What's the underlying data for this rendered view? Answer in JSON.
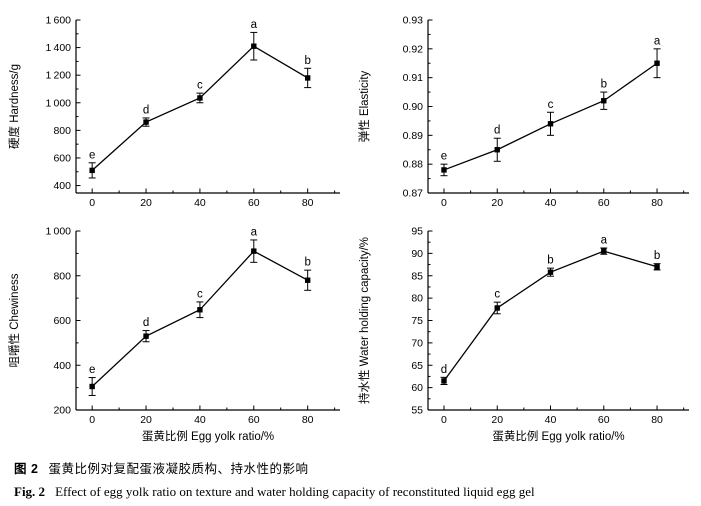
{
  "figure": {
    "caption_zh_label": "图 2",
    "caption_zh": "蛋黄比例对复配蛋液凝胶质构、持水性的影响",
    "caption_en_label": "Fig. 2",
    "caption_en": "Effect of egg yolk ratio on texture and water holding capacity of reconstituted liquid egg gel"
  },
  "style": {
    "line_color": "#000000",
    "marker_color": "#000000",
    "background": "#ffffff"
  },
  "chart_data": [
    {
      "id": "hardness",
      "type": "line",
      "x": [
        0,
        20,
        40,
        60,
        80
      ],
      "values": [
        510,
        860,
        1035,
        1410,
        1180
      ],
      "errors": [
        55,
        30,
        35,
        100,
        70
      ],
      "point_labels": [
        "e",
        "d",
        "c",
        "a",
        "b"
      ],
      "xlabel": "",
      "ylabel": "硬度 Hardness/g",
      "xlim": [
        -6,
        92
      ],
      "xticks": [
        0,
        20,
        40,
        60,
        80
      ],
      "ylim": [
        400,
        1600
      ],
      "ytick_step": 200,
      "y_decimals": 0,
      "ypad_bottom_frac": 0.045,
      "marker": "square",
      "grid": false,
      "legend": "none"
    },
    {
      "id": "elasticity",
      "type": "line",
      "x": [
        0,
        20,
        40,
        60,
        80
      ],
      "values": [
        0.878,
        0.885,
        0.894,
        0.902,
        0.915
      ],
      "errors": [
        0.002,
        0.004,
        0.004,
        0.003,
        0.005
      ],
      "point_labels": [
        "e",
        "d",
        "c",
        "b",
        "a"
      ],
      "xlabel": "",
      "ylabel": "弹性 Elasticity",
      "xlim": [
        -6,
        92
      ],
      "xticks": [
        0,
        20,
        40,
        60,
        80
      ],
      "ylim": [
        0.87,
        0.93
      ],
      "ytick_step": 0.01,
      "y_decimals": 2,
      "ypad_bottom_frac": 0,
      "marker": "square",
      "grid": false,
      "legend": "none"
    },
    {
      "id": "chewiness",
      "type": "line",
      "x": [
        0,
        20,
        40,
        60,
        80
      ],
      "values": [
        305,
        530,
        648,
        910,
        780
      ],
      "errors": [
        40,
        25,
        35,
        50,
        45
      ],
      "point_labels": [
        "e",
        "d",
        "c",
        "a",
        "b"
      ],
      "xlabel": "蛋黄比例 Egg yolk ratio/%",
      "ylabel": "咀嚼性 Chewiness",
      "xlim": [
        -6,
        92
      ],
      "xticks": [
        0,
        20,
        40,
        60,
        80
      ],
      "ylim": [
        200,
        1000
      ],
      "ytick_step": 200,
      "y_decimals": 0,
      "ypad_bottom_frac": 0,
      "marker": "square",
      "grid": false,
      "legend": "none"
    },
    {
      "id": "water-holding-capacity",
      "type": "line",
      "x": [
        0,
        20,
        40,
        60,
        80
      ],
      "values": [
        61.5,
        77.8,
        85.8,
        90.5,
        87.0
      ],
      "errors": [
        0.8,
        1.3,
        0.9,
        0.7,
        0.7
      ],
      "point_labels": [
        "d",
        "c",
        "b",
        "a",
        "b"
      ],
      "xlabel": "蛋黄比例 Egg yolk ratio/%",
      "ylabel": "持水性 Water holding capacity/%",
      "xlim": [
        -6,
        92
      ],
      "xticks": [
        0,
        20,
        40,
        60,
        80
      ],
      "ylim": [
        55,
        95
      ],
      "ytick_step": 5,
      "y_decimals": 0,
      "ypad_bottom_frac": 0,
      "marker": "square",
      "grid": false,
      "legend": "none"
    }
  ]
}
